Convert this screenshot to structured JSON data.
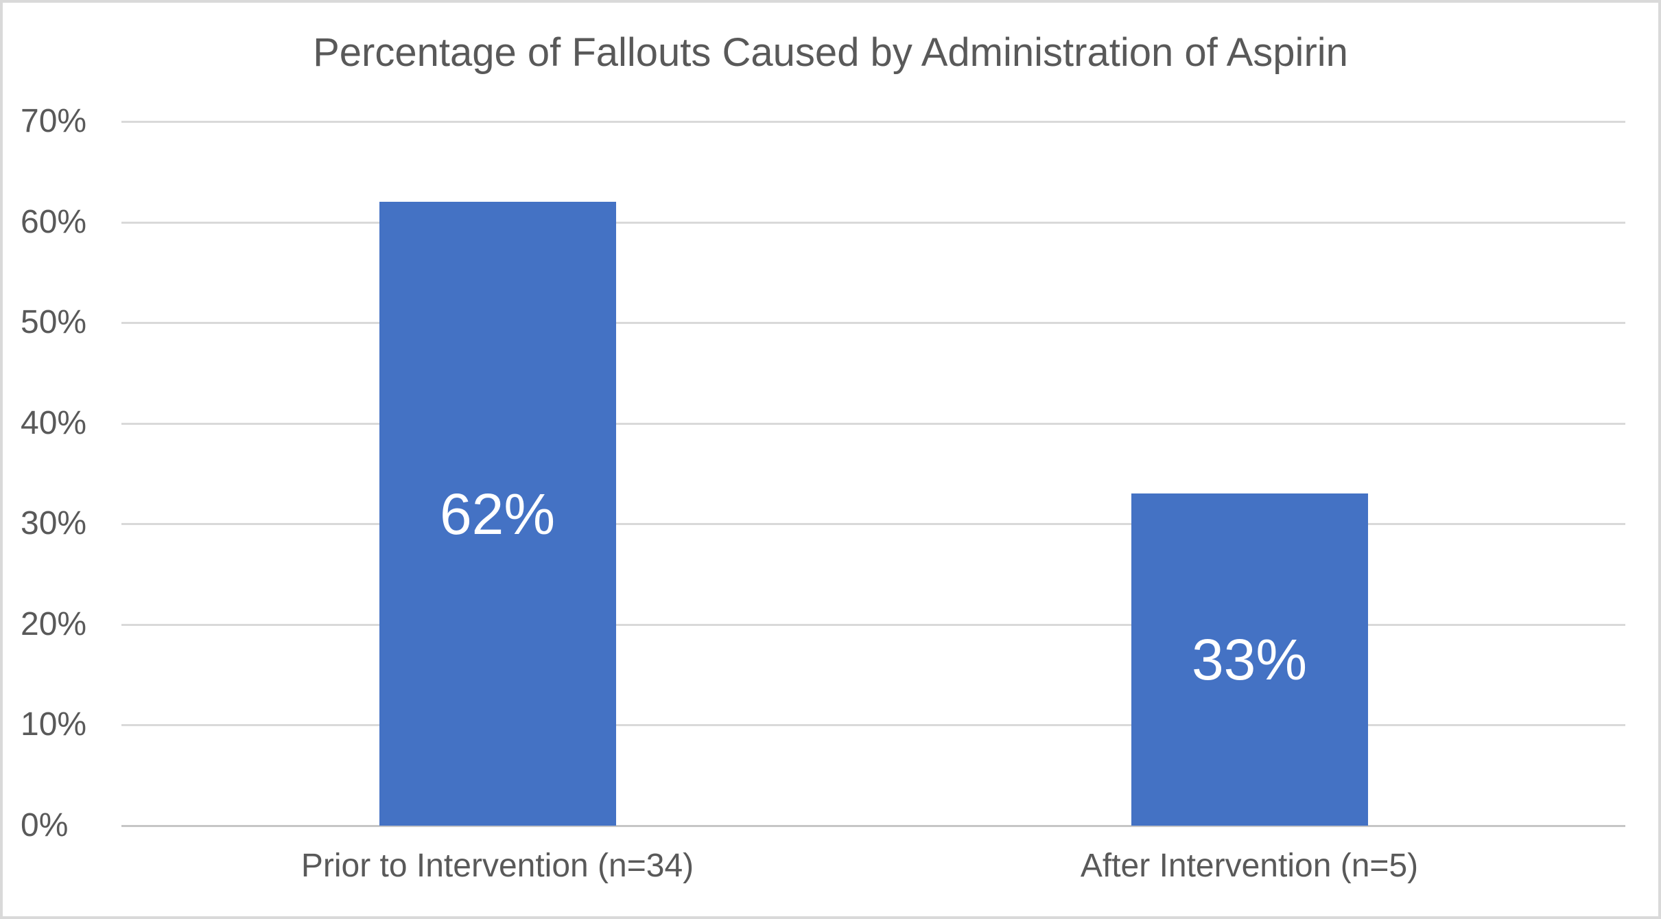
{
  "chart_data": {
    "type": "bar",
    "title": "Percentage of Fallouts Caused by Administration of Aspirin",
    "categories": [
      "Prior to Intervention (n=34)",
      "After Intervention (n=5)"
    ],
    "values": [
      62,
      33
    ],
    "data_labels": [
      "62%",
      "33%"
    ],
    "y_ticks": [
      "70%",
      "60%",
      "50%",
      "40%",
      "30%",
      "20%",
      "10%",
      "0%"
    ],
    "ylim": [
      0,
      70
    ],
    "grid": true,
    "legend_position": "none",
    "colors": {
      "bar": "#4472C4",
      "data_label": "#FFFFFF",
      "text": "#595959",
      "gridline": "#D9D9D9",
      "axis_line": "#C6C6C6",
      "frame_border": "#D9D9D9",
      "background": "#FFFFFF"
    }
  }
}
